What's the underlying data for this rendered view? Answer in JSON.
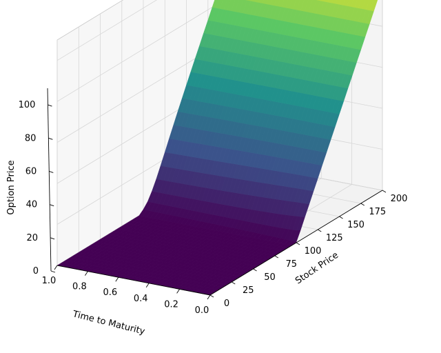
{
  "chart_data": {
    "type": "surface",
    "title": "",
    "xlabel": "Stock Price",
    "ylabel": "Time to Maturity",
    "zlabel": "Option Price",
    "x_ticks": [
      "0",
      "25",
      "50",
      "75",
      "100",
      "125",
      "150",
      "175",
      "200"
    ],
    "y_ticks": [
      "1.0",
      "0.8",
      "0.6",
      "0.4",
      "0.2",
      "0.0"
    ],
    "z_ticks": [
      "0",
      "20",
      "40",
      "60",
      "80",
      "100"
    ],
    "xlim": [
      0,
      200
    ],
    "ylim": [
      0,
      1
    ],
    "zlim": [
      0,
      110
    ],
    "strike": 100,
    "colormap": "viridis",
    "surface_colors": [
      "#440154",
      "#3b528b",
      "#21918c",
      "#5ec962",
      "#fde725"
    ],
    "description_values": {
      "min_price": 0,
      "max_price": 105
    }
  }
}
